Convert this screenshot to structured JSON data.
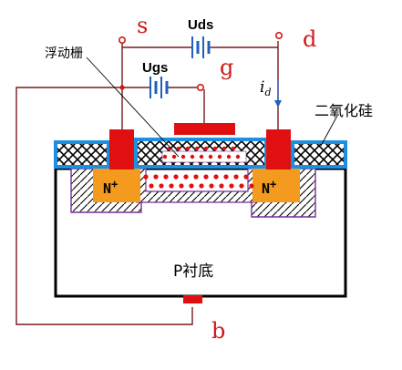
{
  "labels": {
    "source": "s",
    "drain": "d",
    "gate": "g",
    "body": "b",
    "uds": "Uds",
    "ugs": "Ugs",
    "floating_gate": "浮动栅",
    "oxide": "二氧化硅",
    "substrate": "P衬底",
    "n_plus_left": "N",
    "n_plus_right": "N",
    "plus_sign": "+",
    "current_main": "i",
    "current_sub": "d"
  },
  "colors": {
    "terminal_red": "#d01818",
    "wire": "#7a1a1a",
    "battery_blue": "#1e5fbf",
    "oxide_blue": "#1c8fe0",
    "n_region": "#f39a1f",
    "dots": "#e01010",
    "depletion": "#7a2d9a"
  }
}
